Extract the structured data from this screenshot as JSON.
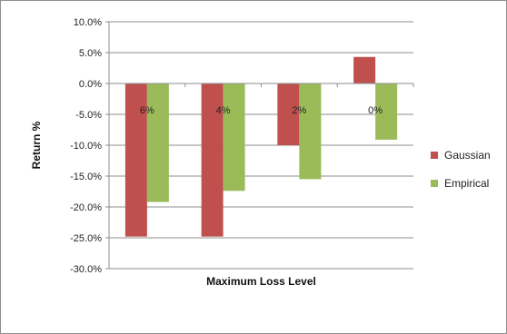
{
  "chart_data": {
    "type": "bar",
    "title": "",
    "xlabel": "Maximum Loss Level",
    "ylabel": "Return %",
    "categories": [
      "6%",
      "4%",
      "2%",
      "0%"
    ],
    "series": [
      {
        "name": "Gaussian",
        "values": [
          -24.8,
          -24.8,
          -10.0,
          4.3
        ],
        "color": "#c0504d"
      },
      {
        "name": "Empirical",
        "values": [
          -19.2,
          -17.4,
          -15.5,
          -9.1
        ],
        "color": "#9bbb59"
      }
    ],
    "ylim": [
      -30,
      10
    ],
    "yticks": [
      10,
      5,
      0,
      -5,
      -10,
      -15,
      -20,
      -25,
      -30
    ],
    "ytick_labels": [
      "10.0%",
      "5.0%",
      "0.0%",
      "-5.0%",
      "-10.0%",
      "-15.0%",
      "-20.0%",
      "-25.0%",
      "-30.0%"
    ],
    "grid": true,
    "legend": "right"
  }
}
